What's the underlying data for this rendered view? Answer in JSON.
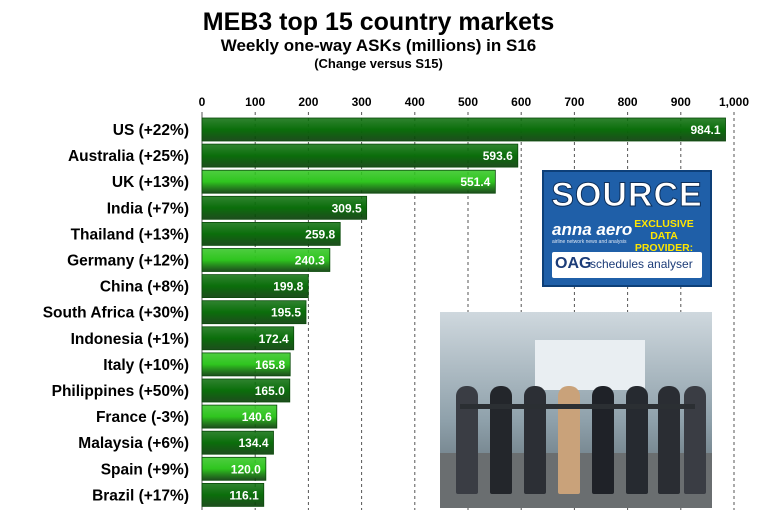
{
  "chart_data": {
    "type": "bar",
    "orientation": "horizontal",
    "title": "MEB3 top 15 country markets",
    "subtitle": "Weekly one-way ASKs (millions) in S16",
    "note": "(Change versus S15)",
    "categories": [
      "US (+22%)",
      "Australia (+25%)",
      "UK (+13%)",
      "India (+7%)",
      "Thailand (+13%)",
      "Germany (+12%)",
      "China (+8%)",
      "South Africa (+30%)",
      "Indonesia (+1%)",
      "Italy (+10%)",
      "Philippines (+50%)",
      "France (-3%)",
      "Malaysia (+6%)",
      "Spain (+9%)",
      "Brazil (+17%)"
    ],
    "values": [
      984.1,
      593.6,
      551.4,
      309.5,
      259.8,
      240.3,
      199.8,
      195.5,
      172.4,
      165.8,
      165.0,
      140.6,
      134.4,
      120.0,
      116.1
    ],
    "value_labels": [
      "984.1",
      "593.6",
      "551.4",
      "309.5",
      "259.8",
      "240.3",
      "199.8",
      "195.5",
      "172.4",
      "165.8",
      "165.0",
      "140.6",
      "134.4",
      "120.0",
      "116.1"
    ],
    "bar_colors": [
      "#0b6e0b",
      "#0b6e0b",
      "#2fc51f",
      "#0b6e0b",
      "#0b6e0b",
      "#2fc51f",
      "#0b6e0b",
      "#0b6e0b",
      "#0b6e0b",
      "#2fc51f",
      "#0b6e0b",
      "#2fc51f",
      "#0b6e0b",
      "#2fc51f",
      "#0b6e0b"
    ],
    "xticks": [
      0,
      100,
      200,
      300,
      400,
      500,
      600,
      700,
      800,
      900,
      1000
    ],
    "xtick_labels": [
      "0",
      "100",
      "200",
      "300",
      "400",
      "500",
      "600",
      "700",
      "800",
      "900",
      "1,000"
    ],
    "xlim": [
      0,
      1000
    ],
    "grid": "vertical dashed",
    "legend": "none"
  },
  "source_box": {
    "word": "SOURCE",
    "brand": "anna aero",
    "brand_tagline": "airline network news and analysis",
    "exclusive_line1": "EXCLUSIVE",
    "exclusive_line2": "DATA PROVIDER:",
    "oag_logo": "OAG",
    "oag_text": "schedules analyser",
    "background": "#1f5fa8",
    "highlight": "#ffe600"
  },
  "photo": {
    "subject": "ribbon-cutting-ceremony-photo"
  }
}
